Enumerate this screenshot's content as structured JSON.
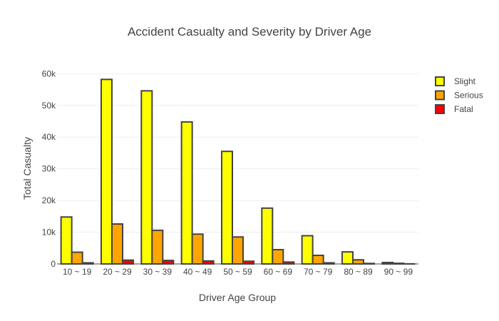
{
  "chart_data": {
    "type": "bar",
    "title": "Accident Casualty and Severity by Driver Age",
    "xlabel": "Driver Age Group",
    "ylabel": "Total Casualty",
    "categories": [
      "10 ~ 19",
      "20 ~ 29",
      "30 ~ 39",
      "40 ~ 49",
      "50 ~ 59",
      "60 ~ 69",
      "70 ~ 79",
      "80 ~ 89",
      "90 ~ 99"
    ],
    "series": [
      {
        "name": "Slight",
        "color": "#ffff00",
        "values": [
          14800,
          58200,
          54600,
          44800,
          35500,
          17600,
          8900,
          3800,
          450
        ]
      },
      {
        "name": "Serious",
        "color": "#ffa500",
        "values": [
          3700,
          12600,
          10600,
          9400,
          8500,
          4500,
          2700,
          1300,
          200
        ]
      },
      {
        "name": "Fatal",
        "color": "#ff0000",
        "values": [
          350,
          1200,
          1100,
          950,
          850,
          600,
          350,
          150,
          30
        ]
      }
    ],
    "ylim": [
      0,
      63000
    ],
    "yticks": [
      0,
      10000,
      20000,
      30000,
      40000,
      50000,
      60000
    ],
    "ytick_labels": [
      "0",
      "10k",
      "20k",
      "30k",
      "40k",
      "50k",
      "60k"
    ],
    "bar_outline_color": "#444444",
    "grid": true,
    "legend_position": "top-right"
  }
}
